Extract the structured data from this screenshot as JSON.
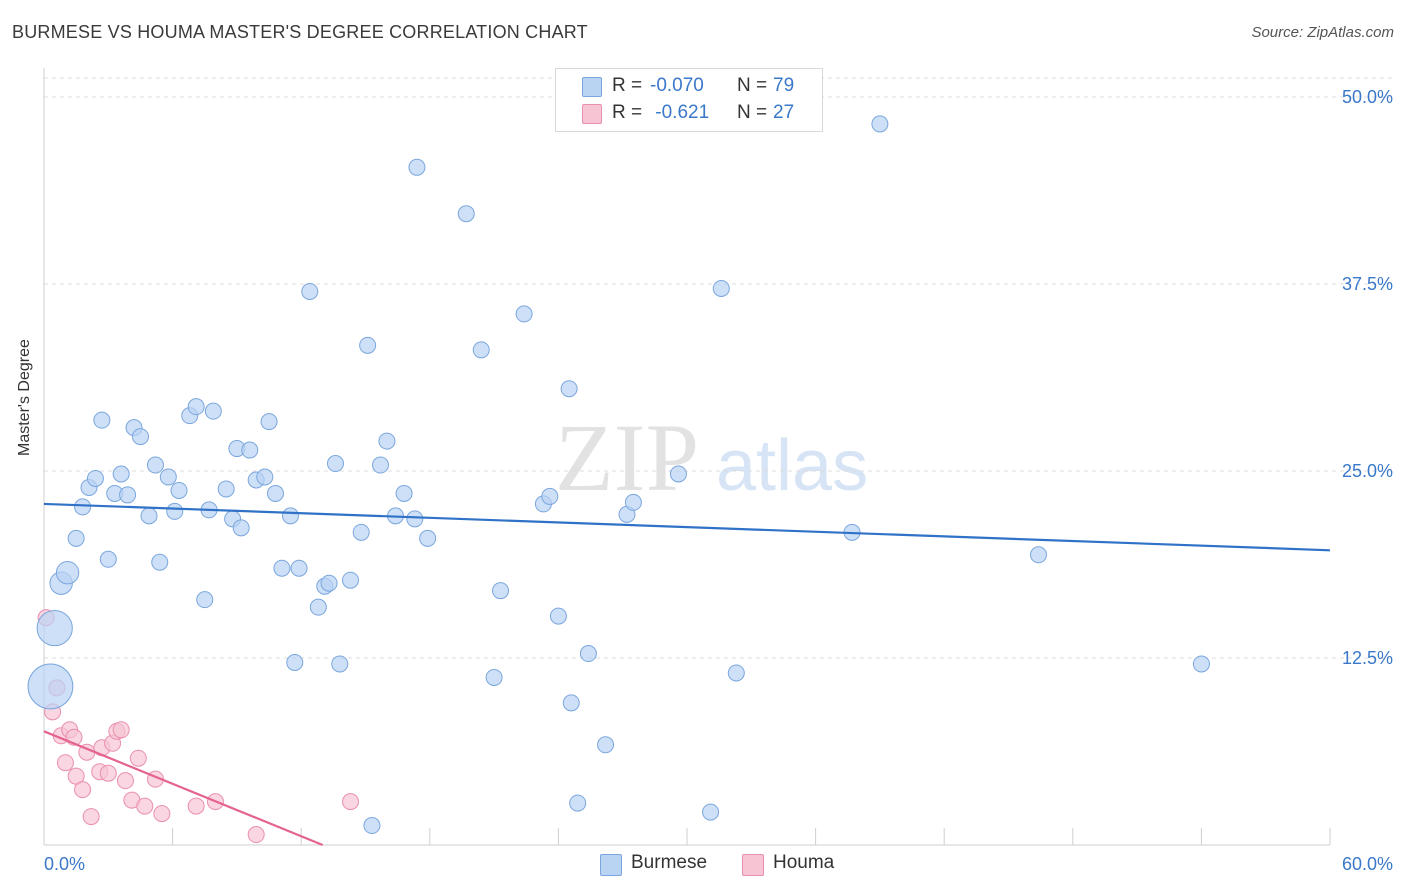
{
  "title": "BURMESE VS HOUMA MASTER'S DEGREE CORRELATION CHART",
  "source": "Source: ZipAtlas.com",
  "watermark": {
    "zip": "ZIP",
    "atlas": "atlas"
  },
  "legend": {
    "rows": [
      {
        "r_label": "R =",
        "r_value": "-0.070",
        "n_label": "N =",
        "n_value": "79"
      },
      {
        "r_label": "R =",
        "r_value": " -0.621",
        "n_label": "N =",
        "n_value": "27"
      }
    ]
  },
  "bottom_legend": {
    "burmese": "Burmese",
    "houma": "Houma"
  },
  "colors": {
    "burmese_fill": "#b9d3f3",
    "burmese_stroke": "#7aa6dd",
    "burmese_line": "#2f72c7",
    "houma_fill": "#f7c4d4",
    "houma_stroke": "#ea8fae",
    "houma_line": "#e4638f",
    "accent_text": "#3a78c9",
    "grid": "#dddddd"
  },
  "chart_data": {
    "type": "scatter",
    "title": "BURMESE VS HOUMA MASTER'S DEGREE CORRELATION CHART",
    "xlabel": "",
    "ylabel": "Master's Degree",
    "xlim": [
      0,
      60
    ],
    "ylim": [
      0,
      50
    ],
    "x_tick_labels": [
      "0.0%",
      "60.0%"
    ],
    "y_ticks": [
      12.5,
      25.0,
      37.5,
      50.0
    ],
    "y_tick_labels": [
      "12.5%",
      "25.0%",
      "37.5%",
      "50.0%"
    ],
    "series": [
      {
        "name": "Burmese",
        "r": -0.07,
        "n": 79,
        "trend": {
          "x": [
            0,
            60
          ],
          "y": [
            22.8,
            19.7
          ]
        },
        "points": [
          {
            "x": 0.5,
            "y": 14.5,
            "s": 2.2
          },
          {
            "x": 0.3,
            "y": 10.6,
            "s": 2.8
          },
          {
            "x": 0.8,
            "y": 17.5,
            "s": 1.4
          },
          {
            "x": 1.1,
            "y": 18.2,
            "s": 1.4
          },
          {
            "x": 1.5,
            "y": 20.5
          },
          {
            "x": 1.8,
            "y": 22.6
          },
          {
            "x": 2.1,
            "y": 23.9
          },
          {
            "x": 2.4,
            "y": 24.5
          },
          {
            "x": 2.7,
            "y": 28.4
          },
          {
            "x": 3.0,
            "y": 19.1
          },
          {
            "x": 3.3,
            "y": 23.5
          },
          {
            "x": 3.6,
            "y": 24.8
          },
          {
            "x": 3.9,
            "y": 23.4
          },
          {
            "x": 4.2,
            "y": 27.9
          },
          {
            "x": 4.5,
            "y": 27.3
          },
          {
            "x": 4.9,
            "y": 22.0
          },
          {
            "x": 5.2,
            "y": 25.4
          },
          {
            "x": 5.4,
            "y": 18.9
          },
          {
            "x": 5.8,
            "y": 24.6
          },
          {
            "x": 6.1,
            "y": 22.3
          },
          {
            "x": 6.3,
            "y": 23.7
          },
          {
            "x": 6.8,
            "y": 28.7
          },
          {
            "x": 7.1,
            "y": 29.3
          },
          {
            "x": 7.5,
            "y": 16.4
          },
          {
            "x": 7.7,
            "y": 22.4
          },
          {
            "x": 7.9,
            "y": 29.0
          },
          {
            "x": 8.5,
            "y": 23.8
          },
          {
            "x": 8.8,
            "y": 21.8
          },
          {
            "x": 9.0,
            "y": 26.5
          },
          {
            "x": 9.2,
            "y": 21.2
          },
          {
            "x": 9.6,
            "y": 26.4
          },
          {
            "x": 9.9,
            "y": 24.4
          },
          {
            "x": 10.3,
            "y": 24.6
          },
          {
            "x": 10.5,
            "y": 28.3
          },
          {
            "x": 10.8,
            "y": 23.5
          },
          {
            "x": 11.1,
            "y": 18.5
          },
          {
            "x": 11.5,
            "y": 22.0
          },
          {
            "x": 11.7,
            "y": 12.2
          },
          {
            "x": 11.9,
            "y": 18.5
          },
          {
            "x": 12.4,
            "y": 37.0
          },
          {
            "x": 12.8,
            "y": 15.9
          },
          {
            "x": 13.1,
            "y": 17.3
          },
          {
            "x": 13.3,
            "y": 17.5
          },
          {
            "x": 13.6,
            "y": 25.5
          },
          {
            "x": 13.8,
            "y": 12.1
          },
          {
            "x": 14.3,
            "y": 17.7
          },
          {
            "x": 14.8,
            "y": 20.9
          },
          {
            "x": 15.1,
            "y": 33.4
          },
          {
            "x": 15.3,
            "y": 1.3
          },
          {
            "x": 15.7,
            "y": 25.4
          },
          {
            "x": 16.0,
            "y": 27.0
          },
          {
            "x": 16.4,
            "y": 22.0
          },
          {
            "x": 16.8,
            "y": 23.5
          },
          {
            "x": 17.3,
            "y": 21.8
          },
          {
            "x": 17.4,
            "y": 45.3
          },
          {
            "x": 17.9,
            "y": 20.5
          },
          {
            "x": 19.7,
            "y": 42.2
          },
          {
            "x": 20.4,
            "y": 33.1
          },
          {
            "x": 21.0,
            "y": 11.2
          },
          {
            "x": 21.3,
            "y": 17.0
          },
          {
            "x": 22.4,
            "y": 35.5
          },
          {
            "x": 23.3,
            "y": 22.8
          },
          {
            "x": 23.6,
            "y": 23.3
          },
          {
            "x": 24.0,
            "y": 15.3
          },
          {
            "x": 24.5,
            "y": 30.5
          },
          {
            "x": 24.6,
            "y": 9.5
          },
          {
            "x": 24.9,
            "y": 2.8
          },
          {
            "x": 25.4,
            "y": 12.8
          },
          {
            "x": 26.2,
            "y": 6.7
          },
          {
            "x": 27.2,
            "y": 22.1
          },
          {
            "x": 27.5,
            "y": 22.9
          },
          {
            "x": 29.6,
            "y": 24.8
          },
          {
            "x": 31.1,
            "y": 2.2
          },
          {
            "x": 31.6,
            "y": 37.2
          },
          {
            "x": 32.3,
            "y": 11.5
          },
          {
            "x": 37.7,
            "y": 20.9
          },
          {
            "x": 39.0,
            "y": 48.2
          },
          {
            "x": 46.4,
            "y": 19.4
          },
          {
            "x": 54.0,
            "y": 12.1
          }
        ]
      },
      {
        "name": "Houma",
        "r": -0.621,
        "n": 27,
        "trend": {
          "x": [
            0,
            13
          ],
          "y": [
            7.6,
            0.0
          ]
        },
        "points": [
          {
            "x": 0.1,
            "y": 15.2
          },
          {
            "x": 0.4,
            "y": 8.9
          },
          {
            "x": 0.6,
            "y": 10.5
          },
          {
            "x": 0.8,
            "y": 7.3
          },
          {
            "x": 1.0,
            "y": 5.5
          },
          {
            "x": 1.2,
            "y": 7.7
          },
          {
            "x": 1.4,
            "y": 7.2
          },
          {
            "x": 1.5,
            "y": 4.6
          },
          {
            "x": 1.8,
            "y": 3.7
          },
          {
            "x": 2.0,
            "y": 6.2
          },
          {
            "x": 2.2,
            "y": 1.9
          },
          {
            "x": 2.6,
            "y": 4.9
          },
          {
            "x": 2.7,
            "y": 6.5
          },
          {
            "x": 3.0,
            "y": 4.8
          },
          {
            "x": 3.2,
            "y": 6.8
          },
          {
            "x": 3.4,
            "y": 7.6
          },
          {
            "x": 3.6,
            "y": 7.7
          },
          {
            "x": 3.8,
            "y": 4.3
          },
          {
            "x": 4.1,
            "y": 3.0
          },
          {
            "x": 4.4,
            "y": 5.8
          },
          {
            "x": 4.7,
            "y": 2.6
          },
          {
            "x": 5.2,
            "y": 4.4
          },
          {
            "x": 5.5,
            "y": 2.1
          },
          {
            "x": 7.1,
            "y": 2.6
          },
          {
            "x": 8.0,
            "y": 2.9
          },
          {
            "x": 9.9,
            "y": 0.7
          },
          {
            "x": 14.3,
            "y": 2.9
          }
        ]
      }
    ]
  }
}
